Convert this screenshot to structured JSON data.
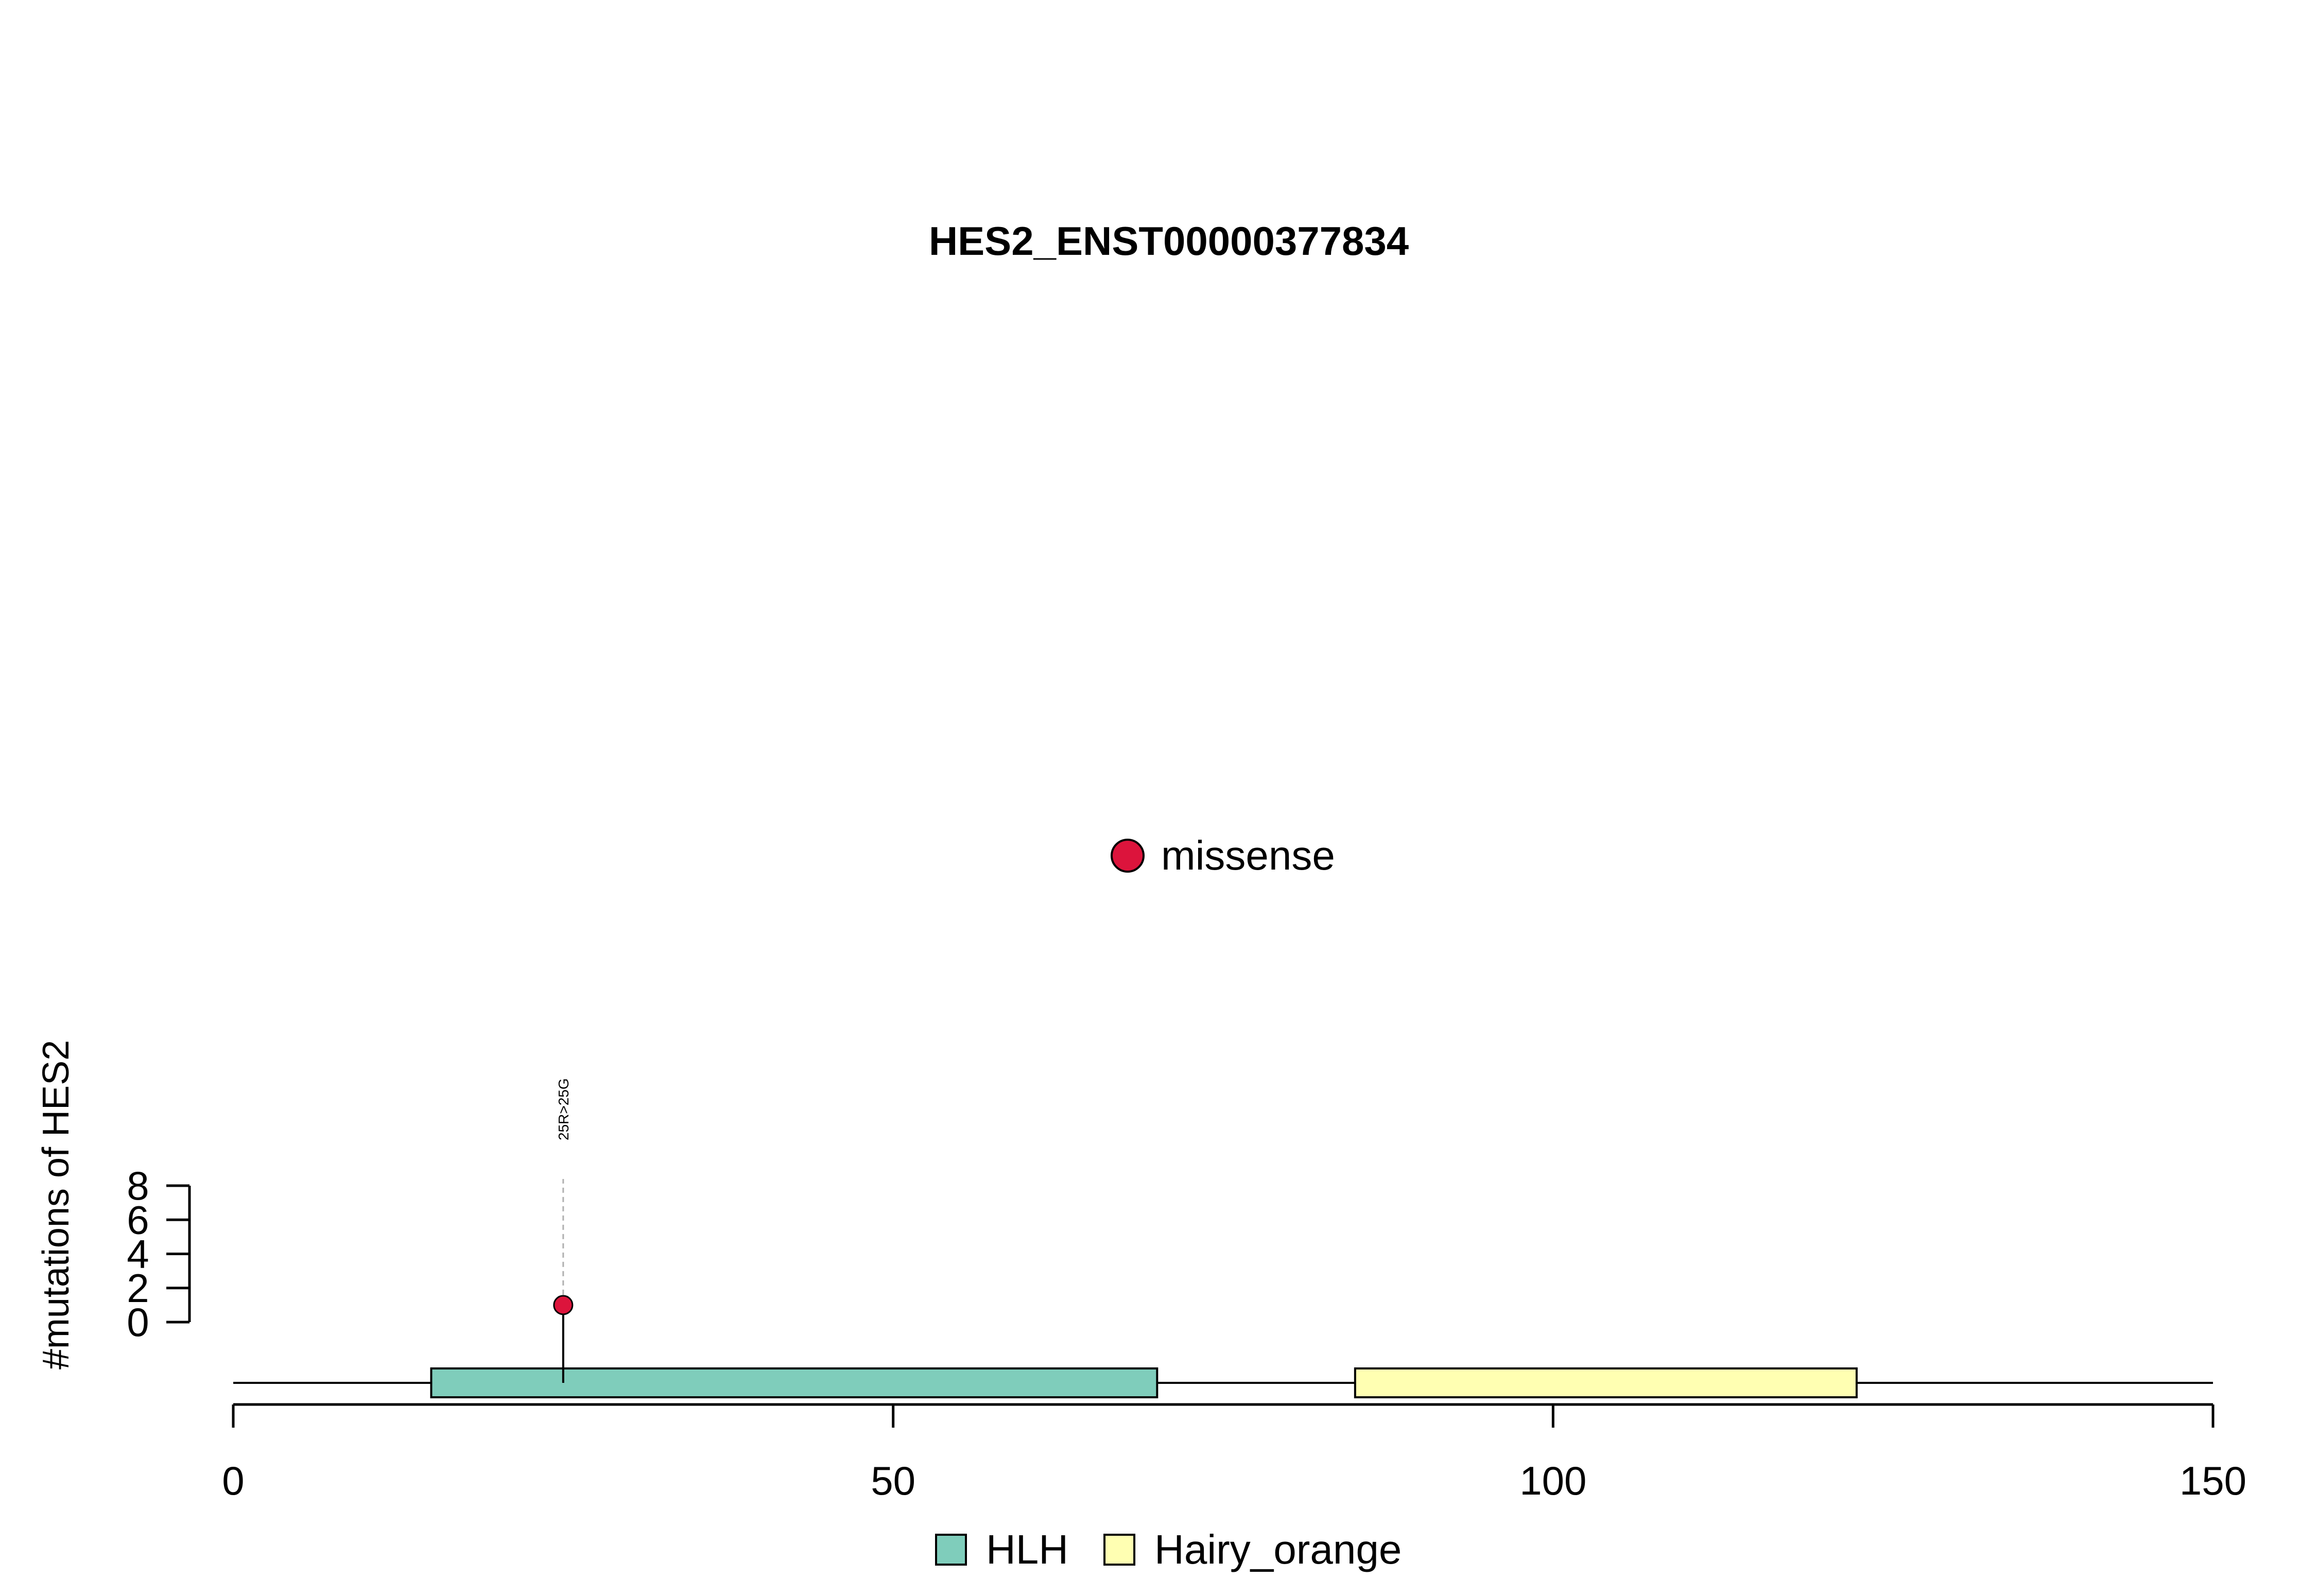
{
  "chart_data": {
    "type": "lollipop",
    "title": "HES2_ENST00000377834",
    "ylabel": "#mutations of HES2",
    "xlim": [
      0,
      150
    ],
    "x_ticks": [
      0,
      50,
      100,
      150
    ],
    "ylim": [
      0,
      8
    ],
    "y_ticks": [
      0,
      2,
      4,
      6,
      8
    ],
    "protein_length": 150,
    "domains": [
      {
        "name": "HLH",
        "start": 15,
        "end": 70,
        "color": "#7fcdbb"
      },
      {
        "name": "Hairy_orange",
        "start": 85,
        "end": 123,
        "color": "#ffffb2"
      }
    ],
    "mutations": [
      {
        "position": 25,
        "count": 1,
        "label": "25R>25G",
        "type": "missense"
      }
    ],
    "mutation_types": [
      {
        "name": "missense",
        "color": "#dc143c"
      }
    ],
    "legend_domains": [
      {
        "name": "HLH",
        "color": "#7fcdbb"
      },
      {
        "name": "Hairy_orange",
        "color": "#ffffb2"
      }
    ]
  }
}
